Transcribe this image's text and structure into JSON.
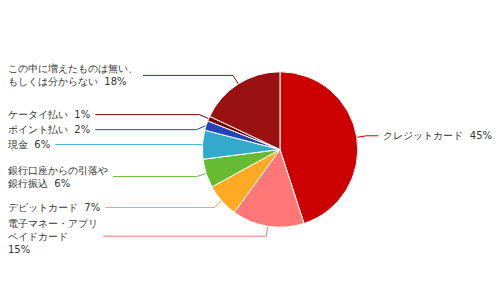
{
  "chart_data": {
    "type": "pie",
    "categories": [
      "クレジットカード  45%",
      "電子マネー・アプリ\nペイドカード\n15%",
      "デビットカード  7%",
      "銀行口座からの引落や\n銀行振込  6%",
      "現金  6%",
      "ポイント払い  2%",
      "ケータイ払い  1%",
      "この中に増えたものは無い、\nもしくは分からない  18%"
    ],
    "values": [
      45,
      15,
      7,
      6,
      6,
      2,
      1,
      18
    ],
    "colors": [
      "#cc0000",
      "#ff7777",
      "#ffaa22",
      "#66bb33",
      "#33aacc",
      "#2244bb",
      "#770000",
      "#991111"
    ]
  }
}
